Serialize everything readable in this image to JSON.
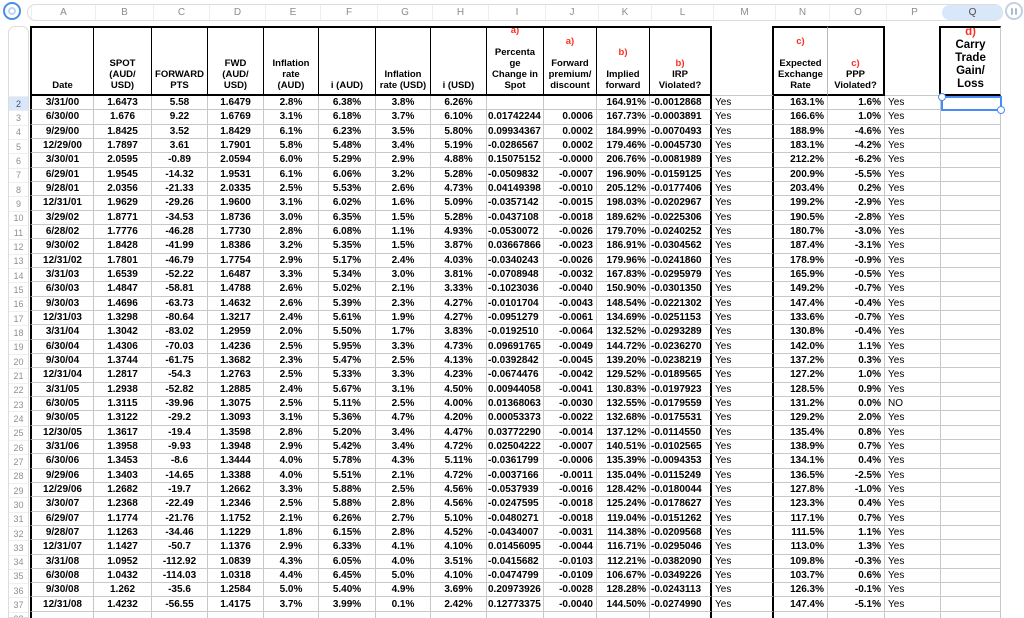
{
  "colors": {
    "accent_red": "#ff2d21",
    "selection_blue": "#4a8cf7",
    "highlight_blue": "#d9e7fa",
    "grid_line": "#c5c9c9",
    "table_border": "#000000"
  },
  "icons": {
    "top_left": "select-table-circle-icon",
    "top_right": "column-actions-icon"
  },
  "column_strip": {
    "letters": [
      "A",
      "B",
      "C",
      "D",
      "E",
      "F",
      "G",
      "H",
      "I",
      "J",
      "K",
      "L",
      "M",
      "N",
      "O",
      "P",
      "Q"
    ],
    "selected": "Q"
  },
  "selection": {
    "cell": "Q2",
    "column": "Q",
    "row": 2
  },
  "header_cells": [
    {
      "text": "Date"
    },
    {
      "text": "SPOT\n(AUD/\nUSD)"
    },
    {
      "text": "FORWARD\nPTS"
    },
    {
      "text": "FWD\n(AUD/\nUSD)"
    },
    {
      "text": "Inflation\nrate\n(AUD)"
    },
    {
      "text": "i (AUD)"
    },
    {
      "text": "Inflation\nrate (USD)"
    },
    {
      "text": "i (USD)"
    },
    {
      "pre": "a)",
      "inline": false,
      "sep": "\n",
      "text": "Percenta\nge\nChange in\nSpot"
    },
    {
      "pre": "a)",
      "inline": false,
      "sep": "\n",
      "text": "Forward\npremium/\ndiscount"
    },
    {
      "pre": "b)",
      "inline": false,
      "sep": "\n",
      "text": "Implied\nforward"
    },
    {
      "pre": "b)",
      "inline": true,
      "sep": " ",
      "text": "IRP\nViolated?"
    },
    {
      "text": ""
    },
    {
      "pre": "c)",
      "inline": false,
      "sep": "\n",
      "text": "Expected\nExchange\nRate"
    },
    {
      "pre": "c)",
      "inline": true,
      "sep": "",
      "text": "PPP\nViolated?"
    },
    {
      "text": ""
    },
    {
      "pre": "d)",
      "inline": true,
      "sep": " ",
      "text": "Carry\nTrade\nGain/\nLoss",
      "big": true
    }
  ],
  "rows": [
    {
      "n": 2,
      "cells": [
        "3/31/00",
        "1.6473",
        "5.58",
        "1.6479",
        "2.8%",
        "6.38%",
        "3.8%",
        "6.26%",
        "",
        "",
        "164.91%",
        "-0.0012868",
        "Yes",
        "163.1%",
        "1.6%",
        "Yes",
        ""
      ]
    },
    {
      "n": 3,
      "cells": [
        "6/30/00",
        "1.676",
        "9.22",
        "1.6769",
        "3.1%",
        "6.18%",
        "3.7%",
        "6.10%",
        "0.01742244",
        "0.0006",
        "167.73%",
        "-0.0003891",
        "Yes",
        "166.6%",
        "1.0%",
        "Yes",
        ""
      ]
    },
    {
      "n": 4,
      "cells": [
        "9/29/00",
        "1.8425",
        "3.52",
        "1.8429",
        "6.1%",
        "6.23%",
        "3.5%",
        "5.80%",
        "0.09934367",
        "0.0002",
        "184.99%",
        "-0.0070493",
        "Yes",
        "188.9%",
        "-4.6%",
        "Yes",
        ""
      ]
    },
    {
      "n": 5,
      "cells": [
        "12/29/00",
        "1.7897",
        "3.61",
        "1.7901",
        "5.8%",
        "5.48%",
        "3.4%",
        "5.19%",
        "-0.0286567",
        "0.0002",
        "179.46%",
        "-0.0045730",
        "Yes",
        "183.1%",
        "-4.2%",
        "Yes",
        ""
      ]
    },
    {
      "n": 6,
      "cells": [
        "3/30/01",
        "2.0595",
        "-0.89",
        "2.0594",
        "6.0%",
        "5.29%",
        "2.9%",
        "4.88%",
        "0.15075152",
        "-0.0000",
        "206.76%",
        "-0.0081989",
        "Yes",
        "212.2%",
        "-6.2%",
        "Yes",
        ""
      ]
    },
    {
      "n": 7,
      "cells": [
        "6/29/01",
        "1.9545",
        "-14.32",
        "1.9531",
        "6.1%",
        "6.06%",
        "3.2%",
        "5.28%",
        "-0.0509832",
        "-0.0007",
        "196.90%",
        "-0.0159125",
        "Yes",
        "200.9%",
        "-5.5%",
        "Yes",
        ""
      ]
    },
    {
      "n": 8,
      "cells": [
        "9/28/01",
        "2.0356",
        "-21.33",
        "2.0335",
        "2.5%",
        "5.53%",
        "2.6%",
        "4.73%",
        "0.04149398",
        "-0.0010",
        "205.12%",
        "-0.0177406",
        "Yes",
        "203.4%",
        "0.2%",
        "Yes",
        ""
      ]
    },
    {
      "n": 9,
      "cells": [
        "12/31/01",
        "1.9629",
        "-29.26",
        "1.9600",
        "3.1%",
        "6.02%",
        "1.6%",
        "5.09%",
        "-0.0357142",
        "-0.0015",
        "198.03%",
        "-0.0202967",
        "Yes",
        "199.2%",
        "-2.9%",
        "Yes",
        ""
      ]
    },
    {
      "n": 10,
      "cells": [
        "3/29/02",
        "1.8771",
        "-34.53",
        "1.8736",
        "3.0%",
        "6.35%",
        "1.5%",
        "5.28%",
        "-0.0437108",
        "-0.0018",
        "189.62%",
        "-0.0225306",
        "Yes",
        "190.5%",
        "-2.8%",
        "Yes",
        ""
      ]
    },
    {
      "n": 11,
      "cells": [
        "6/28/02",
        "1.7776",
        "-46.28",
        "1.7730",
        "2.8%",
        "6.08%",
        "1.1%",
        "4.93%",
        "-0.0530072",
        "-0.0026",
        "179.70%",
        "-0.0240252",
        "Yes",
        "180.7%",
        "-3.0%",
        "Yes",
        ""
      ]
    },
    {
      "n": 12,
      "cells": [
        "9/30/02",
        "1.8428",
        "-41.99",
        "1.8386",
        "3.2%",
        "5.35%",
        "1.5%",
        "3.87%",
        "0.03667866",
        "-0.0023",
        "186.91%",
        "-0.0304562",
        "Yes",
        "187.4%",
        "-3.1%",
        "Yes",
        ""
      ]
    },
    {
      "n": 13,
      "cells": [
        "12/31/02",
        "1.7801",
        "-46.79",
        "1.7754",
        "2.9%",
        "5.17%",
        "2.4%",
        "4.03%",
        "-0.0340243",
        "-0.0026",
        "179.96%",
        "-0.0241860",
        "Yes",
        "178.9%",
        "-0.9%",
        "Yes",
        ""
      ]
    },
    {
      "n": 14,
      "cells": [
        "3/31/03",
        "1.6539",
        "-52.22",
        "1.6487",
        "3.3%",
        "5.34%",
        "3.0%",
        "3.81%",
        "-0.0708948",
        "-0.0032",
        "167.83%",
        "-0.0295979",
        "Yes",
        "165.9%",
        "-0.5%",
        "Yes",
        ""
      ]
    },
    {
      "n": 15,
      "cells": [
        "6/30/03",
        "1.4847",
        "-58.81",
        "1.4788",
        "2.6%",
        "5.02%",
        "2.1%",
        "3.33%",
        "-0.1023036",
        "-0.0040",
        "150.90%",
        "-0.0301350",
        "Yes",
        "149.2%",
        "-0.7%",
        "Yes",
        ""
      ]
    },
    {
      "n": 16,
      "cells": [
        "9/30/03",
        "1.4696",
        "-63.73",
        "1.4632",
        "2.6%",
        "5.39%",
        "2.3%",
        "4.27%",
        "-0.0101704",
        "-0.0043",
        "148.54%",
        "-0.0221302",
        "Yes",
        "147.4%",
        "-0.4%",
        "Yes",
        ""
      ]
    },
    {
      "n": 17,
      "cells": [
        "12/31/03",
        "1.3298",
        "-80.64",
        "1.3217",
        "2.4%",
        "5.61%",
        "1.9%",
        "4.27%",
        "-0.0951279",
        "-0.0061",
        "134.69%",
        "-0.0251153",
        "Yes",
        "133.6%",
        "-0.7%",
        "Yes",
        ""
      ]
    },
    {
      "n": 18,
      "cells": [
        "3/31/04",
        "1.3042",
        "-83.02",
        "1.2959",
        "2.0%",
        "5.50%",
        "1.7%",
        "3.83%",
        "-0.0192510",
        "-0.0064",
        "132.52%",
        "-0.0293289",
        "Yes",
        "130.8%",
        "-0.4%",
        "Yes",
        ""
      ]
    },
    {
      "n": 19,
      "cells": [
        "6/30/04",
        "1.4306",
        "-70.03",
        "1.4236",
        "2.5%",
        "5.95%",
        "3.3%",
        "4.73%",
        "0.09691765",
        "-0.0049",
        "144.72%",
        "-0.0236270",
        "Yes",
        "142.0%",
        "1.1%",
        "Yes",
        ""
      ]
    },
    {
      "n": 20,
      "cells": [
        "9/30/04",
        "1.3744",
        "-61.75",
        "1.3682",
        "2.3%",
        "5.47%",
        "2.5%",
        "4.13%",
        "-0.0392842",
        "-0.0045",
        "139.20%",
        "-0.0238219",
        "Yes",
        "137.2%",
        "0.3%",
        "Yes",
        ""
      ]
    },
    {
      "n": 21,
      "cells": [
        "12/31/04",
        "1.2817",
        "-54.3",
        "1.2763",
        "2.5%",
        "5.33%",
        "3.3%",
        "4.23%",
        "-0.0674476",
        "-0.0042",
        "129.52%",
        "-0.0189565",
        "Yes",
        "127.2%",
        "1.0%",
        "Yes",
        ""
      ]
    },
    {
      "n": 22,
      "cells": [
        "3/31/05",
        "1.2938",
        "-52.82",
        "1.2885",
        "2.4%",
        "5.67%",
        "3.1%",
        "4.50%",
        "0.00944058",
        "-0.0041",
        "130.83%",
        "-0.0197923",
        "Yes",
        "128.5%",
        "0.9%",
        "Yes",
        ""
      ]
    },
    {
      "n": 23,
      "cells": [
        "6/30/05",
        "1.3115",
        "-39.96",
        "1.3075",
        "2.5%",
        "5.11%",
        "2.5%",
        "4.00%",
        "0.01368063",
        "-0.0030",
        "132.55%",
        "-0.0179559",
        "Yes",
        "131.2%",
        "0.0%",
        "NO",
        ""
      ]
    },
    {
      "n": 24,
      "cells": [
        "9/30/05",
        "1.3122",
        "-29.2",
        "1.3093",
        "3.1%",
        "5.36%",
        "4.7%",
        "4.20%",
        "0.00053373",
        "-0.0022",
        "132.68%",
        "-0.0175531",
        "Yes",
        "129.2%",
        "2.0%",
        "Yes",
        ""
      ]
    },
    {
      "n": 25,
      "cells": [
        "12/30/05",
        "1.3617",
        "-19.4",
        "1.3598",
        "2.8%",
        "5.20%",
        "3.4%",
        "4.47%",
        "0.03772290",
        "-0.0014",
        "137.12%",
        "-0.0114550",
        "Yes",
        "135.4%",
        "0.8%",
        "Yes",
        ""
      ]
    },
    {
      "n": 26,
      "cells": [
        "3/31/06",
        "1.3958",
        "-9.93",
        "1.3948",
        "2.9%",
        "5.42%",
        "3.4%",
        "4.72%",
        "0.02504222",
        "-0.0007",
        "140.51%",
        "-0.0102565",
        "Yes",
        "138.9%",
        "0.7%",
        "Yes",
        ""
      ]
    },
    {
      "n": 27,
      "cells": [
        "6/30/06",
        "1.3453",
        "-8.6",
        "1.3444",
        "4.0%",
        "5.78%",
        "4.3%",
        "5.11%",
        "-0.0361799",
        "-0.0006",
        "135.39%",
        "-0.0094353",
        "Yes",
        "134.1%",
        "0.4%",
        "Yes",
        ""
      ]
    },
    {
      "n": 28,
      "cells": [
        "9/29/06",
        "1.3403",
        "-14.65",
        "1.3388",
        "4.0%",
        "5.51%",
        "2.1%",
        "4.72%",
        "-0.0037166",
        "-0.0011",
        "135.04%",
        "-0.0115249",
        "Yes",
        "136.5%",
        "-2.5%",
        "Yes",
        ""
      ]
    },
    {
      "n": 29,
      "cells": [
        "12/29/06",
        "1.2682",
        "-19.7",
        "1.2662",
        "3.3%",
        "5.88%",
        "2.5%",
        "4.56%",
        "-0.0537939",
        "-0.0016",
        "128.42%",
        "-0.0180044",
        "Yes",
        "127.8%",
        "-1.0%",
        "Yes",
        ""
      ]
    },
    {
      "n": 30,
      "cells": [
        "3/30/07",
        "1.2368",
        "-22.49",
        "1.2346",
        "2.5%",
        "5.88%",
        "2.8%",
        "4.56%",
        "-0.0247595",
        "-0.0018",
        "125.24%",
        "-0.0178627",
        "Yes",
        "123.3%",
        "0.4%",
        "Yes",
        ""
      ]
    },
    {
      "n": 31,
      "cells": [
        "6/29/07",
        "1.1774",
        "-21.76",
        "1.1752",
        "2.1%",
        "6.26%",
        "2.7%",
        "5.10%",
        "-0.0480271",
        "-0.0018",
        "119.04%",
        "-0.0151262",
        "Yes",
        "117.1%",
        "0.7%",
        "Yes",
        ""
      ]
    },
    {
      "n": 32,
      "cells": [
        "9/28/07",
        "1.1263",
        "-34.46",
        "1.1229",
        "1.8%",
        "6.15%",
        "2.8%",
        "4.52%",
        "-0.0434007",
        "-0.0031",
        "114.38%",
        "-0.0209568",
        "Yes",
        "111.5%",
        "1.1%",
        "Yes",
        ""
      ]
    },
    {
      "n": 33,
      "cells": [
        "12/31/07",
        "1.1427",
        "-50.7",
        "1.1376",
        "2.9%",
        "6.33%",
        "4.1%",
        "4.10%",
        "0.01456095",
        "-0.0044",
        "116.71%",
        "-0.0295046",
        "Yes",
        "113.0%",
        "1.3%",
        "Yes",
        ""
      ]
    },
    {
      "n": 34,
      "cells": [
        "3/31/08",
        "1.0952",
        "-112.92",
        "1.0839",
        "4.3%",
        "6.05%",
        "4.0%",
        "3.51%",
        "-0.0415682",
        "-0.0103",
        "112.21%",
        "-0.0382090",
        "Yes",
        "109.8%",
        "-0.3%",
        "Yes",
        ""
      ]
    },
    {
      "n": 35,
      "cells": [
        "6/30/08",
        "1.0432",
        "-114.03",
        "1.0318",
        "4.4%",
        "6.45%",
        "5.0%",
        "4.10%",
        "-0.0474799",
        "-0.0109",
        "106.67%",
        "-0.0349226",
        "Yes",
        "103.7%",
        "0.6%",
        "Yes",
        ""
      ]
    },
    {
      "n": 36,
      "cells": [
        "9/30/08",
        "1.262",
        "-35.6",
        "1.2584",
        "5.0%",
        "5.40%",
        "4.9%",
        "3.69%",
        "0.20973926",
        "-0.0028",
        "128.28%",
        "-0.0243113",
        "Yes",
        "126.3%",
        "-0.1%",
        "Yes",
        ""
      ]
    },
    {
      "n": 37,
      "cells": [
        "12/31/08",
        "1.4232",
        "-56.55",
        "1.4175",
        "3.7%",
        "3.99%",
        "0.1%",
        "2.42%",
        "0.12773375",
        "-0.0040",
        "144.50%",
        "-0.0274990",
        "Yes",
        "147.4%",
        "-5.1%",
        "Yes",
        ""
      ]
    },
    {
      "n": 38,
      "cells": [
        "",
        "",
        "",
        "",
        "",
        "",
        "",
        "",
        "",
        "",
        "",
        "",
        "",
        "",
        "",
        "",
        ""
      ]
    }
  ]
}
